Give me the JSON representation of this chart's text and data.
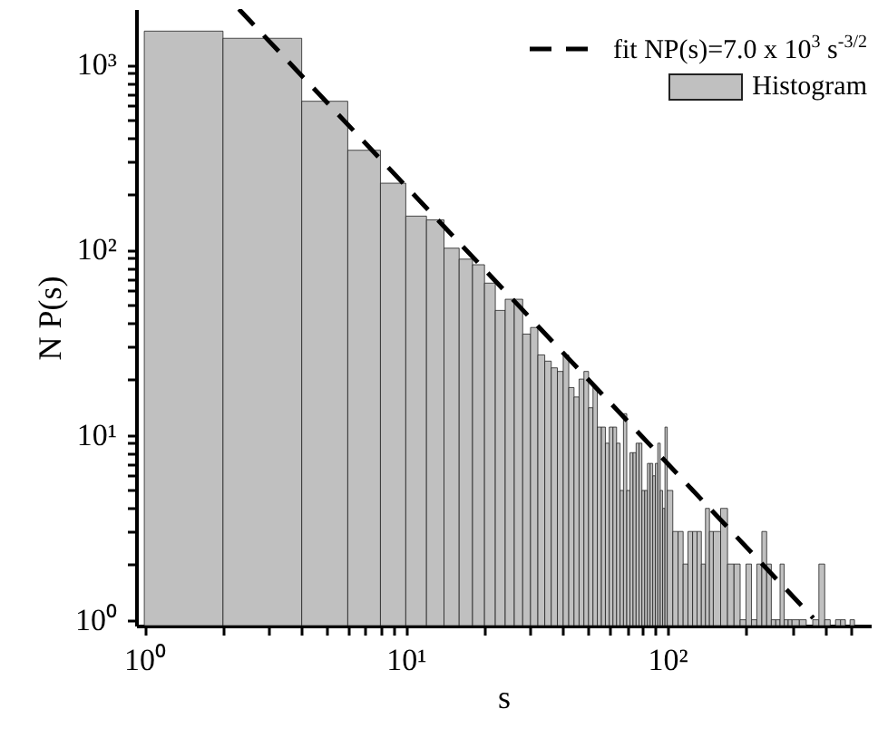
{
  "chart_data": {
    "type": "histogram",
    "xlabel": "s",
    "ylabel": "N P(s)",
    "log": "xy",
    "legend": "top right",
    "xlim": [
      0.93,
      600
    ],
    "ylim": [
      0.93,
      2000
    ],
    "xticks": [
      {
        "value": 1,
        "label": "10⁰"
      },
      {
        "value": 2,
        "label": null
      },
      {
        "value": 3,
        "label": null
      },
      {
        "value": 4,
        "label": null
      },
      {
        "value": 5,
        "label": null
      },
      {
        "value": 6,
        "label": null
      },
      {
        "value": 7,
        "label": null
      },
      {
        "value": 8,
        "label": null
      },
      {
        "value": 9,
        "label": null
      },
      {
        "value": 10,
        "label": "10¹"
      },
      {
        "value": 20,
        "label": null
      },
      {
        "value": 30,
        "label": null
      },
      {
        "value": 40,
        "label": null
      },
      {
        "value": 50,
        "label": null
      },
      {
        "value": 60,
        "label": null
      },
      {
        "value": 70,
        "label": null
      },
      {
        "value": 80,
        "label": null
      },
      {
        "value": 90,
        "label": null
      },
      {
        "value": 100,
        "label": "10²"
      },
      {
        "value": 200,
        "label": null
      },
      {
        "value": 300,
        "label": null
      },
      {
        "value": 400,
        "label": null
      },
      {
        "value": 500,
        "label": null
      }
    ],
    "yticks": [
      {
        "value": 1,
        "label": "10⁰"
      },
      {
        "value": 2,
        "label": null
      },
      {
        "value": 3,
        "label": null
      },
      {
        "value": 4,
        "label": null
      },
      {
        "value": 5,
        "label": null
      },
      {
        "value": 6,
        "label": null
      },
      {
        "value": 7,
        "label": null
      },
      {
        "value": 8,
        "label": null
      },
      {
        "value": 9,
        "label": null
      },
      {
        "value": 10,
        "label": "10¹"
      },
      {
        "value": 20,
        "label": null
      },
      {
        "value": 30,
        "label": null
      },
      {
        "value": 40,
        "label": null
      },
      {
        "value": 50,
        "label": null
      },
      {
        "value": 60,
        "label": null
      },
      {
        "value": 70,
        "label": null
      },
      {
        "value": 80,
        "label": null
      },
      {
        "value": 90,
        "label": null
      },
      {
        "value": 100,
        "label": "10²"
      },
      {
        "value": 200,
        "label": null
      },
      {
        "value": 300,
        "label": null
      },
      {
        "value": 400,
        "label": null
      },
      {
        "value": 500,
        "label": null
      },
      {
        "value": 600,
        "label": null
      },
      {
        "value": 700,
        "label": null
      },
      {
        "value": 800,
        "label": null
      },
      {
        "value": 900,
        "label": null
      },
      {
        "value": 1000,
        "label": "10³"
      }
    ],
    "bins": [
      1,
      2,
      4,
      6,
      8,
      10,
      12,
      14,
      16,
      18,
      20,
      22,
      24,
      26,
      28,
      30,
      32,
      34,
      36,
      38,
      40,
      42,
      44,
      46,
      48,
      50,
      52,
      54,
      56,
      58,
      60,
      62,
      64,
      66,
      68,
      70,
      72,
      74,
      76,
      78,
      80,
      82,
      84,
      86,
      88,
      90,
      92,
      94,
      96,
      98,
      100,
      105,
      110,
      115,
      120,
      125,
      130,
      135,
      140,
      145,
      150,
      160,
      170,
      180,
      190,
      200,
      210,
      220,
      230,
      240,
      250,
      260,
      270,
      280,
      290,
      300,
      320,
      340,
      360,
      380,
      400,
      420,
      440,
      460,
      480,
      500,
      520
    ],
    "series": [
      {
        "name": "fit NP(s)=7.0 x 10$^{3}$ s$^{-3/2}$",
        "type": "line",
        "color": "#000000",
        "line_style": "dashed",
        "x": [
          2.3,
          362
        ],
        "values": [
          2000,
          1.02
        ]
      },
      {
        "name": "Histogram",
        "color": "#c0c0c0",
        "values": [
          1520,
          1390,
          635,
          345,
          229,
          152,
          145,
          102,
          89,
          83,
          66,
          47,
          54,
          54,
          35,
          38,
          27,
          25,
          23,
          22,
          27,
          18,
          16,
          20,
          22,
          14,
          18,
          11,
          11,
          9,
          11,
          11,
          9,
          5,
          13,
          5,
          8,
          8,
          9,
          9,
          5,
          5,
          7,
          7,
          6,
          7,
          9,
          5,
          4,
          11,
          5,
          3,
          3,
          2,
          3,
          3,
          3,
          2,
          4,
          3,
          3,
          4,
          2,
          2,
          1,
          2,
          1,
          2,
          3,
          2,
          1,
          1,
          2,
          1,
          1,
          1,
          1,
          null,
          1,
          2,
          1,
          null,
          1,
          1,
          null,
          1
        ]
      }
    ]
  }
}
